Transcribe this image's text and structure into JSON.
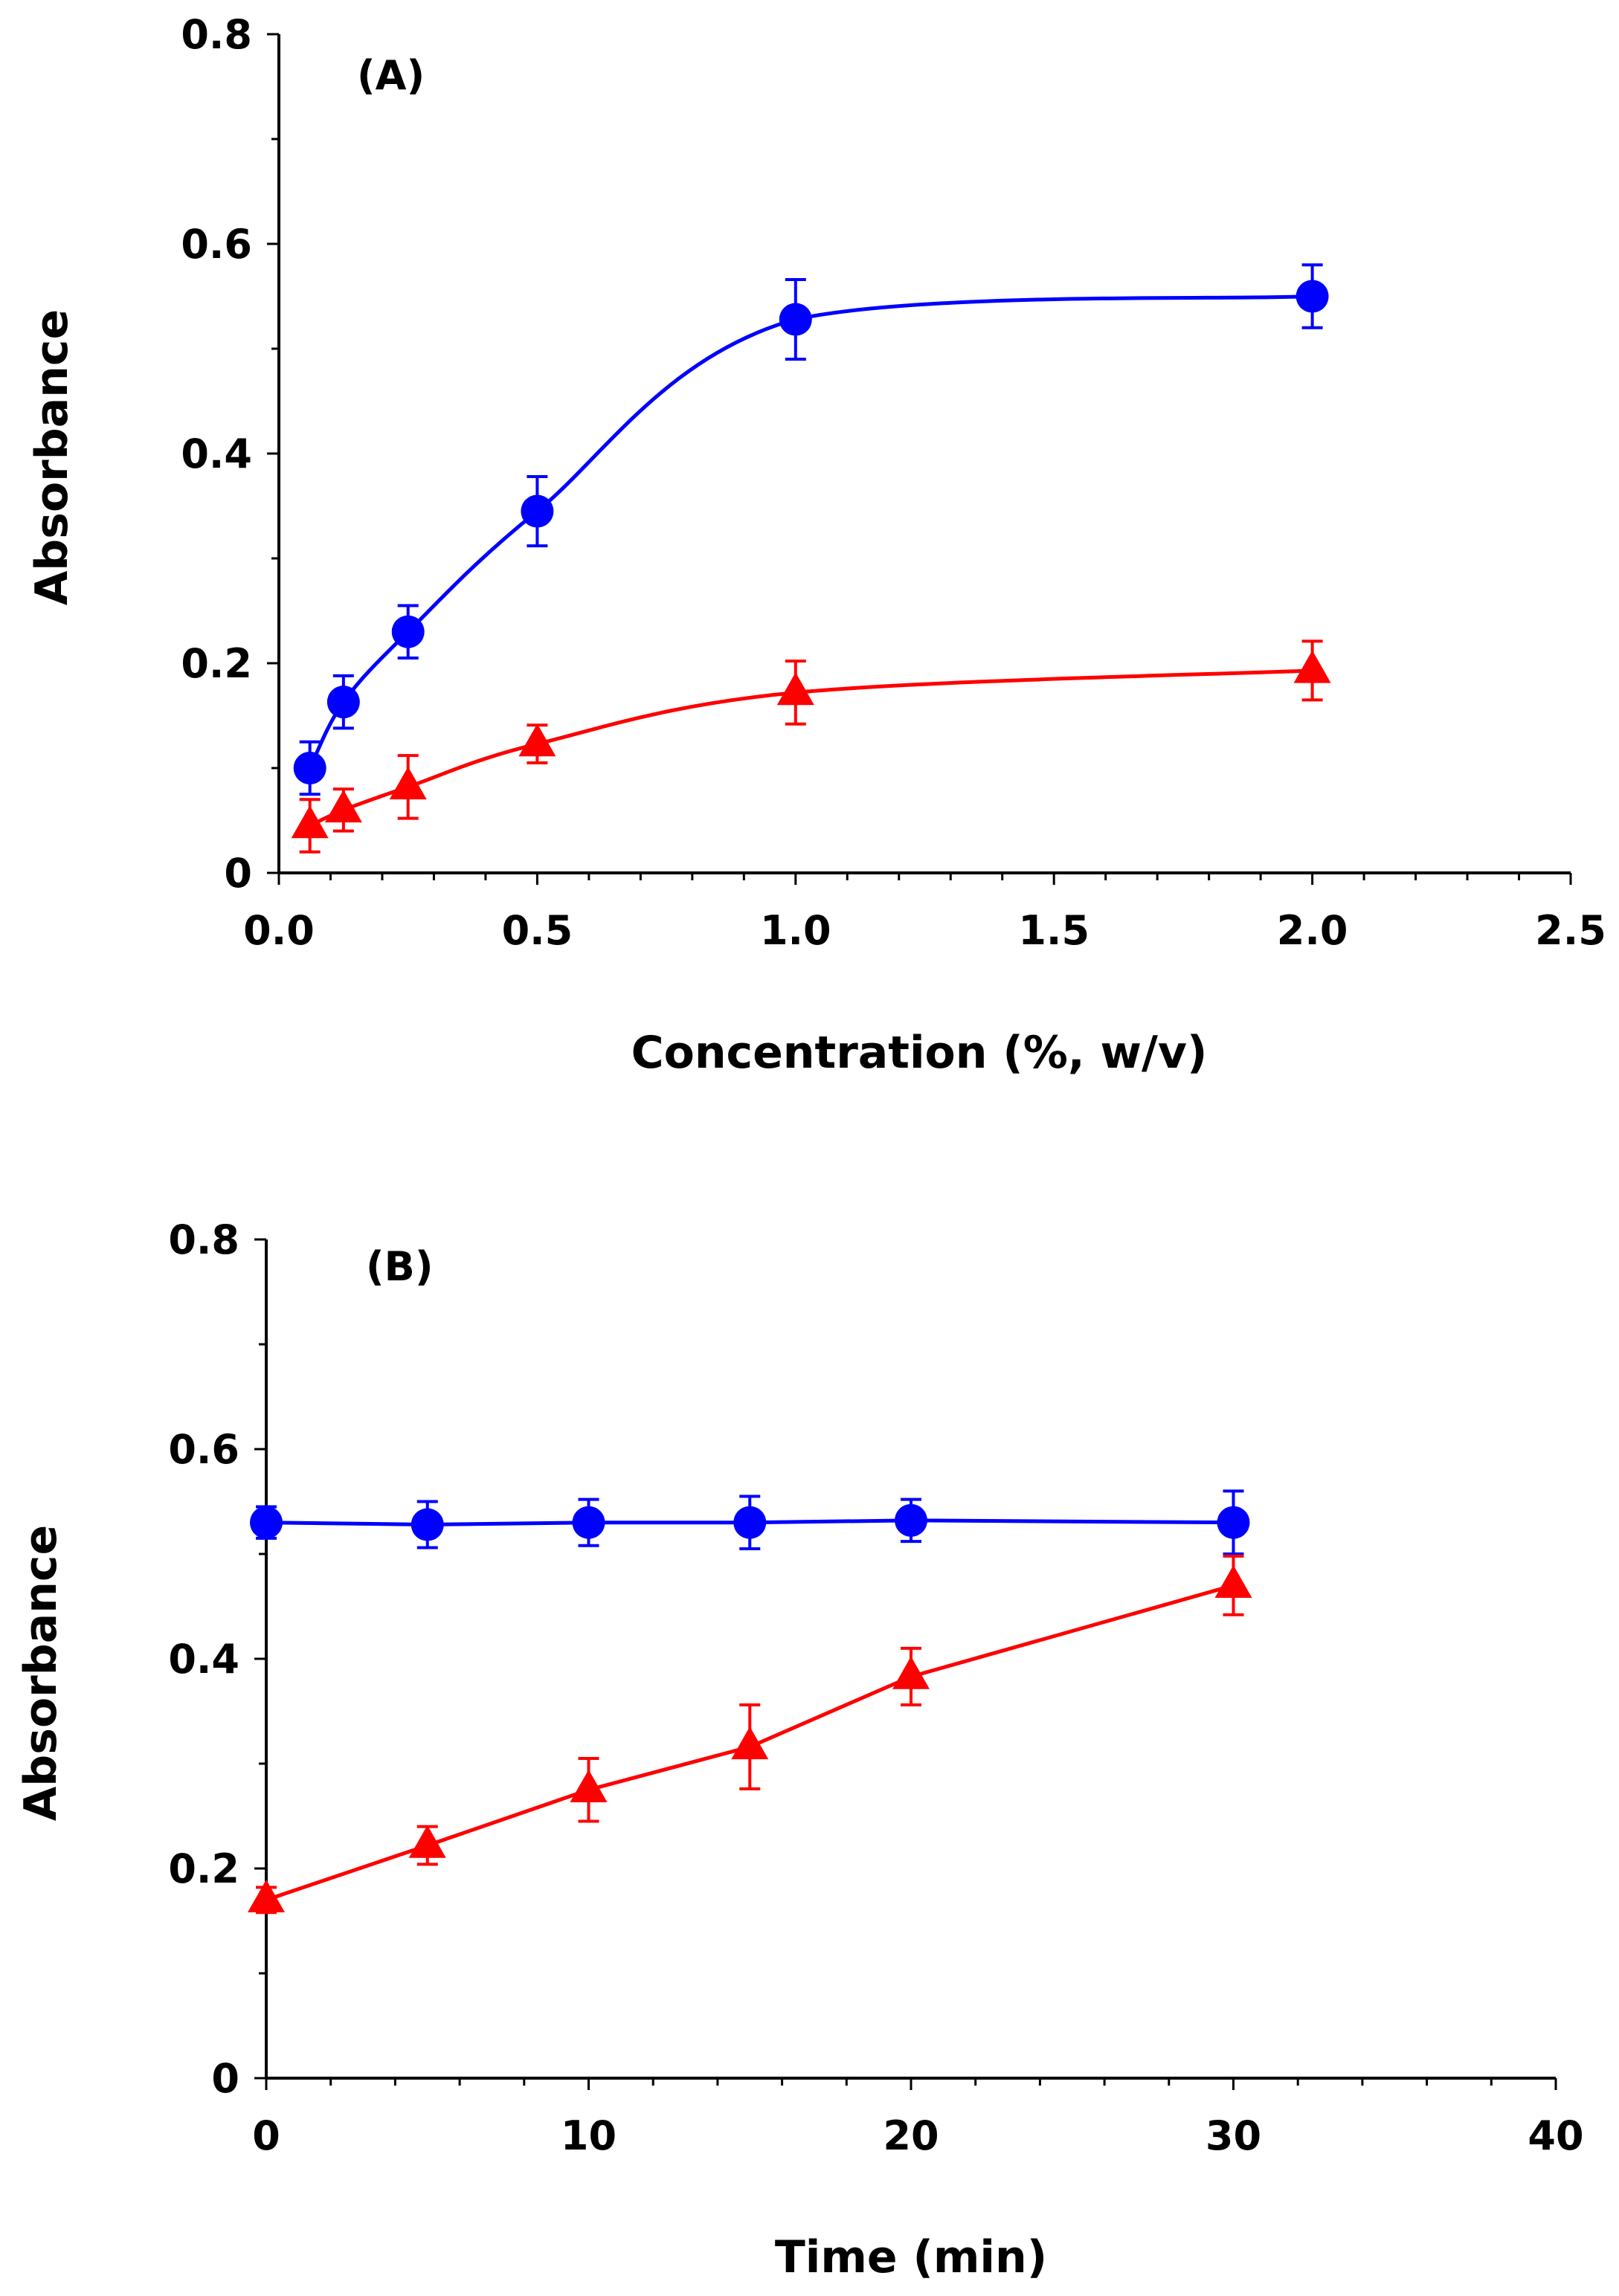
{
  "chart_data": [
    {
      "type": "line",
      "panel_label": "(A)",
      "xlabel": "Concentration (%, w/v)",
      "ylabel": "Absorbance",
      "xlim": [
        0,
        2.5
      ],
      "ylim": [
        0,
        0.8
      ],
      "x_ticks": [
        "0.0",
        "0.5",
        "1.0",
        "1.5",
        "2.0",
        "2.5"
      ],
      "y_ticks": [
        "0",
        "0.2",
        "0.4",
        "0.6",
        "0.8"
      ],
      "x_tick_values": [
        0,
        0.5,
        1.0,
        1.5,
        2.0,
        2.5
      ],
      "y_tick_values": [
        0,
        0.2,
        0.4,
        0.6,
        0.8
      ],
      "x_minor_step": 0.1,
      "y_minor_step": 0.1,
      "smooth": true,
      "series": [
        {
          "name": "circle series",
          "color": "#0000ff",
          "marker": "circle",
          "x": [
            0.06,
            0.125,
            0.25,
            0.5,
            1.0,
            2.0
          ],
          "values": [
            0.1,
            0.163,
            0.23,
            0.345,
            0.528,
            0.55
          ],
          "errors": [
            0.025,
            0.025,
            0.025,
            0.033,
            0.038,
            0.03
          ]
        },
        {
          "name": "triangle series",
          "color": "#ff0000",
          "marker": "triangle",
          "x": [
            0.06,
            0.125,
            0.25,
            0.5,
            1.0,
            2.0
          ],
          "values": [
            0.045,
            0.06,
            0.082,
            0.123,
            0.172,
            0.193
          ],
          "errors": [
            0.025,
            0.02,
            0.03,
            0.018,
            0.03,
            0.028
          ]
        }
      ]
    },
    {
      "type": "line",
      "panel_label": "(B)",
      "xlabel": "Time (min)",
      "ylabel": "Absorbance",
      "xlim": [
        0,
        40
      ],
      "ylim": [
        0,
        0.8
      ],
      "x_ticks": [
        "0",
        "10",
        "20",
        "30",
        "40"
      ],
      "y_ticks": [
        "0",
        "0.2",
        "0.4",
        "0.6",
        "0.8"
      ],
      "x_tick_values": [
        0,
        10,
        20,
        30,
        40
      ],
      "y_tick_values": [
        0,
        0.2,
        0.4,
        0.6,
        0.8
      ],
      "x_minor_step": 2,
      "y_minor_step": 0.1,
      "smooth": false,
      "series": [
        {
          "name": "circle series",
          "color": "#0000ff",
          "marker": "circle",
          "x": [
            0,
            5,
            10,
            15,
            20,
            30
          ],
          "values": [
            0.53,
            0.528,
            0.53,
            0.53,
            0.532,
            0.53
          ],
          "errors": [
            0.015,
            0.022,
            0.022,
            0.025,
            0.02,
            0.03
          ]
        },
        {
          "name": "triangle series",
          "color": "#ff0000",
          "marker": "triangle",
          "x": [
            0,
            5,
            10,
            15,
            20,
            30
          ],
          "values": [
            0.17,
            0.222,
            0.275,
            0.316,
            0.383,
            0.47
          ],
          "errors": [
            0.012,
            0.018,
            0.03,
            0.04,
            0.027,
            0.028
          ]
        }
      ]
    }
  ]
}
